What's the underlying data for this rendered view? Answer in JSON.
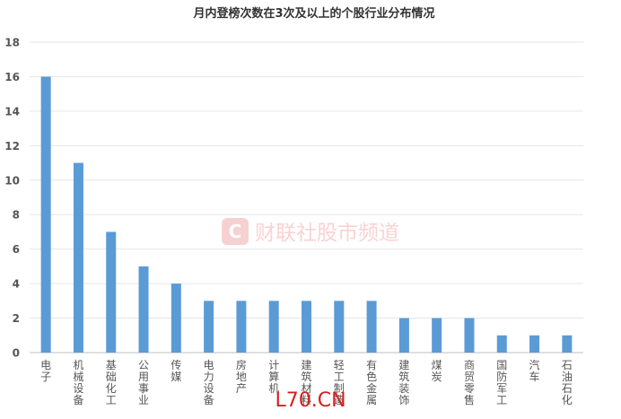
{
  "chart_data": {
    "type": "bar",
    "title": "月内登榜次数在3次及以上的个股行业分布情况",
    "categories": [
      "电子",
      "机械设备",
      "基础化工",
      "公用事业",
      "传媒",
      "电力设备",
      "房地产",
      "计算机",
      "建筑材料",
      "轻工制造",
      "有色金属",
      "建筑装饰",
      "煤炭",
      "商贸零售",
      "国防军工",
      "汽车",
      "石油石化"
    ],
    "values": [
      16,
      11,
      7,
      5,
      4,
      3,
      3,
      3,
      3,
      3,
      3,
      2,
      2,
      2,
      1,
      1,
      1
    ],
    "yticks": [
      "0",
      "2",
      "4",
      "6",
      "8",
      "10",
      "12",
      "14",
      "16",
      "18"
    ],
    "ylim": [
      0,
      18
    ],
    "grid": true,
    "bar_color": "#5b9bd5",
    "grid_color": "#e6e6e6",
    "watermark": "财联社股市频道",
    "overlay_text": "L70.CN",
    "overlay_color": "#d51f1f"
  }
}
